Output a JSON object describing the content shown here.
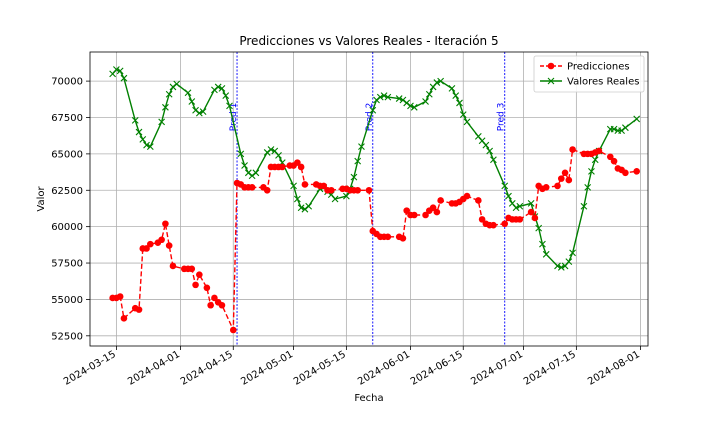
{
  "chart_data": {
    "type": "line",
    "title": "Predicciones vs Valores Reales - Iteración 5",
    "xlabel": "Fecha",
    "ylabel": "Valor",
    "x_range": [
      "2024-03-08",
      "2024-08-03"
    ],
    "ylim": [
      51800,
      72000
    ],
    "grid": true,
    "legend_position": "top-right",
    "x_ticks": [
      "2024-03-15",
      "2024-04-01",
      "2024-04-15",
      "2024-05-01",
      "2024-05-15",
      "2024-06-01",
      "2024-06-15",
      "2024-07-01",
      "2024-07-15",
      "2024-08-01"
    ],
    "y_ticks": [
      52500,
      55000,
      57500,
      60000,
      62500,
      65000,
      67500,
      70000
    ],
    "series": [
      {
        "name": "Predicciones",
        "color": "#ff0000",
        "line_style": "dashed",
        "marker": "circle",
        "points": [
          [
            "2024-03-14",
            55100
          ],
          [
            "2024-03-15",
            55100
          ],
          [
            "2024-03-16",
            55200
          ],
          [
            "2024-03-17",
            53700
          ],
          [
            "2024-03-20",
            54400
          ],
          [
            "2024-03-21",
            54300
          ],
          [
            "2024-03-22",
            58500
          ],
          [
            "2024-03-23",
            58500
          ],
          [
            "2024-03-24",
            58800
          ],
          [
            "2024-03-26",
            58900
          ],
          [
            "2024-03-27",
            59100
          ],
          [
            "2024-03-28",
            60200
          ],
          [
            "2024-03-29",
            58700
          ],
          [
            "2024-03-30",
            57300
          ],
          [
            "2024-04-02",
            57100
          ],
          [
            "2024-04-03",
            57100
          ],
          [
            "2024-04-04",
            57100
          ],
          [
            "2024-04-05",
            56000
          ],
          [
            "2024-04-06",
            56700
          ],
          [
            "2024-04-08",
            55800
          ],
          [
            "2024-04-09",
            54600
          ],
          [
            "2024-04-10",
            55100
          ],
          [
            "2024-04-11",
            54800
          ],
          [
            "2024-04-12",
            54600
          ],
          [
            "2024-04-15",
            52900
          ],
          [
            "2024-04-16",
            63000
          ],
          [
            "2024-04-17",
            62900
          ],
          [
            "2024-04-18",
            62700
          ],
          [
            "2024-04-19",
            62700
          ],
          [
            "2024-04-20",
            62700
          ],
          [
            "2024-04-23",
            62700
          ],
          [
            "2024-04-24",
            62500
          ],
          [
            "2024-04-25",
            64100
          ],
          [
            "2024-04-26",
            64100
          ],
          [
            "2024-04-27",
            64100
          ],
          [
            "2024-04-28",
            64100
          ],
          [
            "2024-04-30",
            64200
          ],
          [
            "2024-05-01",
            64200
          ],
          [
            "2024-05-02",
            64400
          ],
          [
            "2024-05-03",
            64100
          ],
          [
            "2024-05-04",
            62900
          ],
          [
            "2024-05-07",
            62900
          ],
          [
            "2024-05-08",
            62800
          ],
          [
            "2024-05-09",
            62800
          ],
          [
            "2024-05-10",
            62500
          ],
          [
            "2024-05-11",
            62500
          ],
          [
            "2024-05-14",
            62600
          ],
          [
            "2024-05-15",
            62600
          ],
          [
            "2024-05-16",
            62500
          ],
          [
            "2024-05-17",
            62500
          ],
          [
            "2024-05-18",
            62500
          ],
          [
            "2024-05-21",
            62500
          ],
          [
            "2024-05-22",
            59700
          ],
          [
            "2024-05-23",
            59500
          ],
          [
            "2024-05-24",
            59300
          ],
          [
            "2024-05-25",
            59300
          ],
          [
            "2024-05-26",
            59300
          ],
          [
            "2024-05-29",
            59300
          ],
          [
            "2024-05-30",
            59200
          ],
          [
            "2024-05-31",
            61100
          ],
          [
            "2024-06-01",
            60800
          ],
          [
            "2024-06-02",
            60800
          ],
          [
            "2024-06-05",
            60800
          ],
          [
            "2024-06-06",
            61100
          ],
          [
            "2024-06-07",
            61300
          ],
          [
            "2024-06-08",
            61000
          ],
          [
            "2024-06-09",
            61800
          ],
          [
            "2024-06-12",
            61600
          ],
          [
            "2024-06-13",
            61600
          ],
          [
            "2024-06-14",
            61700
          ],
          [
            "2024-06-15",
            61900
          ],
          [
            "2024-06-16",
            62100
          ],
          [
            "2024-06-19",
            61800
          ],
          [
            "2024-06-20",
            60500
          ],
          [
            "2024-06-21",
            60200
          ],
          [
            "2024-06-22",
            60100
          ],
          [
            "2024-06-23",
            60100
          ],
          [
            "2024-06-26",
            60200
          ],
          [
            "2024-06-27",
            60600
          ],
          [
            "2024-06-28",
            60500
          ],
          [
            "2024-06-29",
            60500
          ],
          [
            "2024-06-30",
            60500
          ],
          [
            "2024-07-03",
            61000
          ],
          [
            "2024-07-04",
            60600
          ],
          [
            "2024-07-05",
            62800
          ],
          [
            "2024-07-06",
            62600
          ],
          [
            "2024-07-07",
            62700
          ],
          [
            "2024-07-10",
            62800
          ],
          [
            "2024-07-11",
            63300
          ],
          [
            "2024-07-12",
            63700
          ],
          [
            "2024-07-13",
            63200
          ],
          [
            "2024-07-14",
            65300
          ],
          [
            "2024-07-17",
            65000
          ],
          [
            "2024-07-18",
            65000
          ],
          [
            "2024-07-19",
            65000
          ],
          [
            "2024-07-20",
            65100
          ],
          [
            "2024-07-21",
            65200
          ],
          [
            "2024-07-24",
            64800
          ],
          [
            "2024-07-25",
            64500
          ],
          [
            "2024-07-26",
            64000
          ],
          [
            "2024-07-27",
            63900
          ],
          [
            "2024-07-28",
            63700
          ],
          [
            "2024-07-31",
            63800
          ]
        ]
      },
      {
        "name": "Valores Reales",
        "color": "#008000",
        "line_style": "solid",
        "marker": "x",
        "points": [
          [
            "2024-03-14",
            70500
          ],
          [
            "2024-03-15",
            70800
          ],
          [
            "2024-03-16",
            70700
          ],
          [
            "2024-03-17",
            70200
          ],
          [
            "2024-03-20",
            67300
          ],
          [
            "2024-03-21",
            66500
          ],
          [
            "2024-03-22",
            66000
          ],
          [
            "2024-03-23",
            65600
          ],
          [
            "2024-03-24",
            65500
          ],
          [
            "2024-03-27",
            67200
          ],
          [
            "2024-03-28",
            68200
          ],
          [
            "2024-03-29",
            69100
          ],
          [
            "2024-03-30",
            69600
          ],
          [
            "2024-03-31",
            69800
          ],
          [
            "2024-04-03",
            69200
          ],
          [
            "2024-04-04",
            68600
          ],
          [
            "2024-04-05",
            68000
          ],
          [
            "2024-04-06",
            67800
          ],
          [
            "2024-04-07",
            67900
          ],
          [
            "2024-04-10",
            69400
          ],
          [
            "2024-04-11",
            69600
          ],
          [
            "2024-04-12",
            69500
          ],
          [
            "2024-04-13",
            69000
          ],
          [
            "2024-04-14",
            68300
          ],
          [
            "2024-04-17",
            65000
          ],
          [
            "2024-04-18",
            64200
          ],
          [
            "2024-04-19",
            63700
          ],
          [
            "2024-04-20",
            63500
          ],
          [
            "2024-04-21",
            63700
          ],
          [
            "2024-04-24",
            65100
          ],
          [
            "2024-04-25",
            65300
          ],
          [
            "2024-04-26",
            65200
          ],
          [
            "2024-04-27",
            64900
          ],
          [
            "2024-04-28",
            64400
          ],
          [
            "2024-05-01",
            62800
          ],
          [
            "2024-05-02",
            61900
          ],
          [
            "2024-05-03",
            61300
          ],
          [
            "2024-05-04",
            61200
          ],
          [
            "2024-05-05",
            61400
          ],
          [
            "2024-05-08",
            62600
          ],
          [
            "2024-05-09",
            62700
          ],
          [
            "2024-05-10",
            62400
          ],
          [
            "2024-05-11",
            62200
          ],
          [
            "2024-05-12",
            61900
          ],
          [
            "2024-05-15",
            62100
          ],
          [
            "2024-05-16",
            62600
          ],
          [
            "2024-05-17",
            63400
          ],
          [
            "2024-05-18",
            64500
          ],
          [
            "2024-05-19",
            65500
          ],
          [
            "2024-05-22",
            68000
          ],
          [
            "2024-05-23",
            68700
          ],
          [
            "2024-05-24",
            68900
          ],
          [
            "2024-05-25",
            69000
          ],
          [
            "2024-05-26",
            68900
          ],
          [
            "2024-05-29",
            68800
          ],
          [
            "2024-05-30",
            68700
          ],
          [
            "2024-05-31",
            68500
          ],
          [
            "2024-06-01",
            68300
          ],
          [
            "2024-06-02",
            68200
          ],
          [
            "2024-06-05",
            68600
          ],
          [
            "2024-06-06",
            69100
          ],
          [
            "2024-06-07",
            69600
          ],
          [
            "2024-06-08",
            69900
          ],
          [
            "2024-06-09",
            70000
          ],
          [
            "2024-06-12",
            69500
          ],
          [
            "2024-06-13",
            69000
          ],
          [
            "2024-06-14",
            68500
          ],
          [
            "2024-06-15",
            67700
          ],
          [
            "2024-06-16",
            67200
          ],
          [
            "2024-06-19",
            66200
          ],
          [
            "2024-06-20",
            65900
          ],
          [
            "2024-06-21",
            65600
          ],
          [
            "2024-06-22",
            65200
          ],
          [
            "2024-06-23",
            64600
          ],
          [
            "2024-06-26",
            62800
          ],
          [
            "2024-06-27",
            62100
          ],
          [
            "2024-06-28",
            61600
          ],
          [
            "2024-06-29",
            61300
          ],
          [
            "2024-06-30",
            61400
          ],
          [
            "2024-07-03",
            61600
          ],
          [
            "2024-07-04",
            60700
          ],
          [
            "2024-07-05",
            59900
          ],
          [
            "2024-07-06",
            58800
          ],
          [
            "2024-07-07",
            58100
          ],
          [
            "2024-07-10",
            57300
          ],
          [
            "2024-07-11",
            57200
          ],
          [
            "2024-07-12",
            57300
          ],
          [
            "2024-07-13",
            57600
          ],
          [
            "2024-07-14",
            58200
          ],
          [
            "2024-07-17",
            61400
          ],
          [
            "2024-07-18",
            62700
          ],
          [
            "2024-07-19",
            63800
          ],
          [
            "2024-07-20",
            64600
          ],
          [
            "2024-07-21",
            65200
          ],
          [
            "2024-07-24",
            66700
          ],
          [
            "2024-07-25",
            66700
          ],
          [
            "2024-07-26",
            66600
          ],
          [
            "2024-07-27",
            66600
          ],
          [
            "2024-07-28",
            66800
          ],
          [
            "2024-07-31",
            67400
          ]
        ]
      }
    ],
    "vertical_lines": [
      {
        "date": "2024-04-16",
        "label": "Pred 1",
        "color": "#0000ff"
      },
      {
        "date": "2024-05-22",
        "label": "Pred 2",
        "color": "#0000ff"
      },
      {
        "date": "2024-06-26",
        "label": "Pred 3",
        "color": "#0000ff"
      }
    ]
  }
}
